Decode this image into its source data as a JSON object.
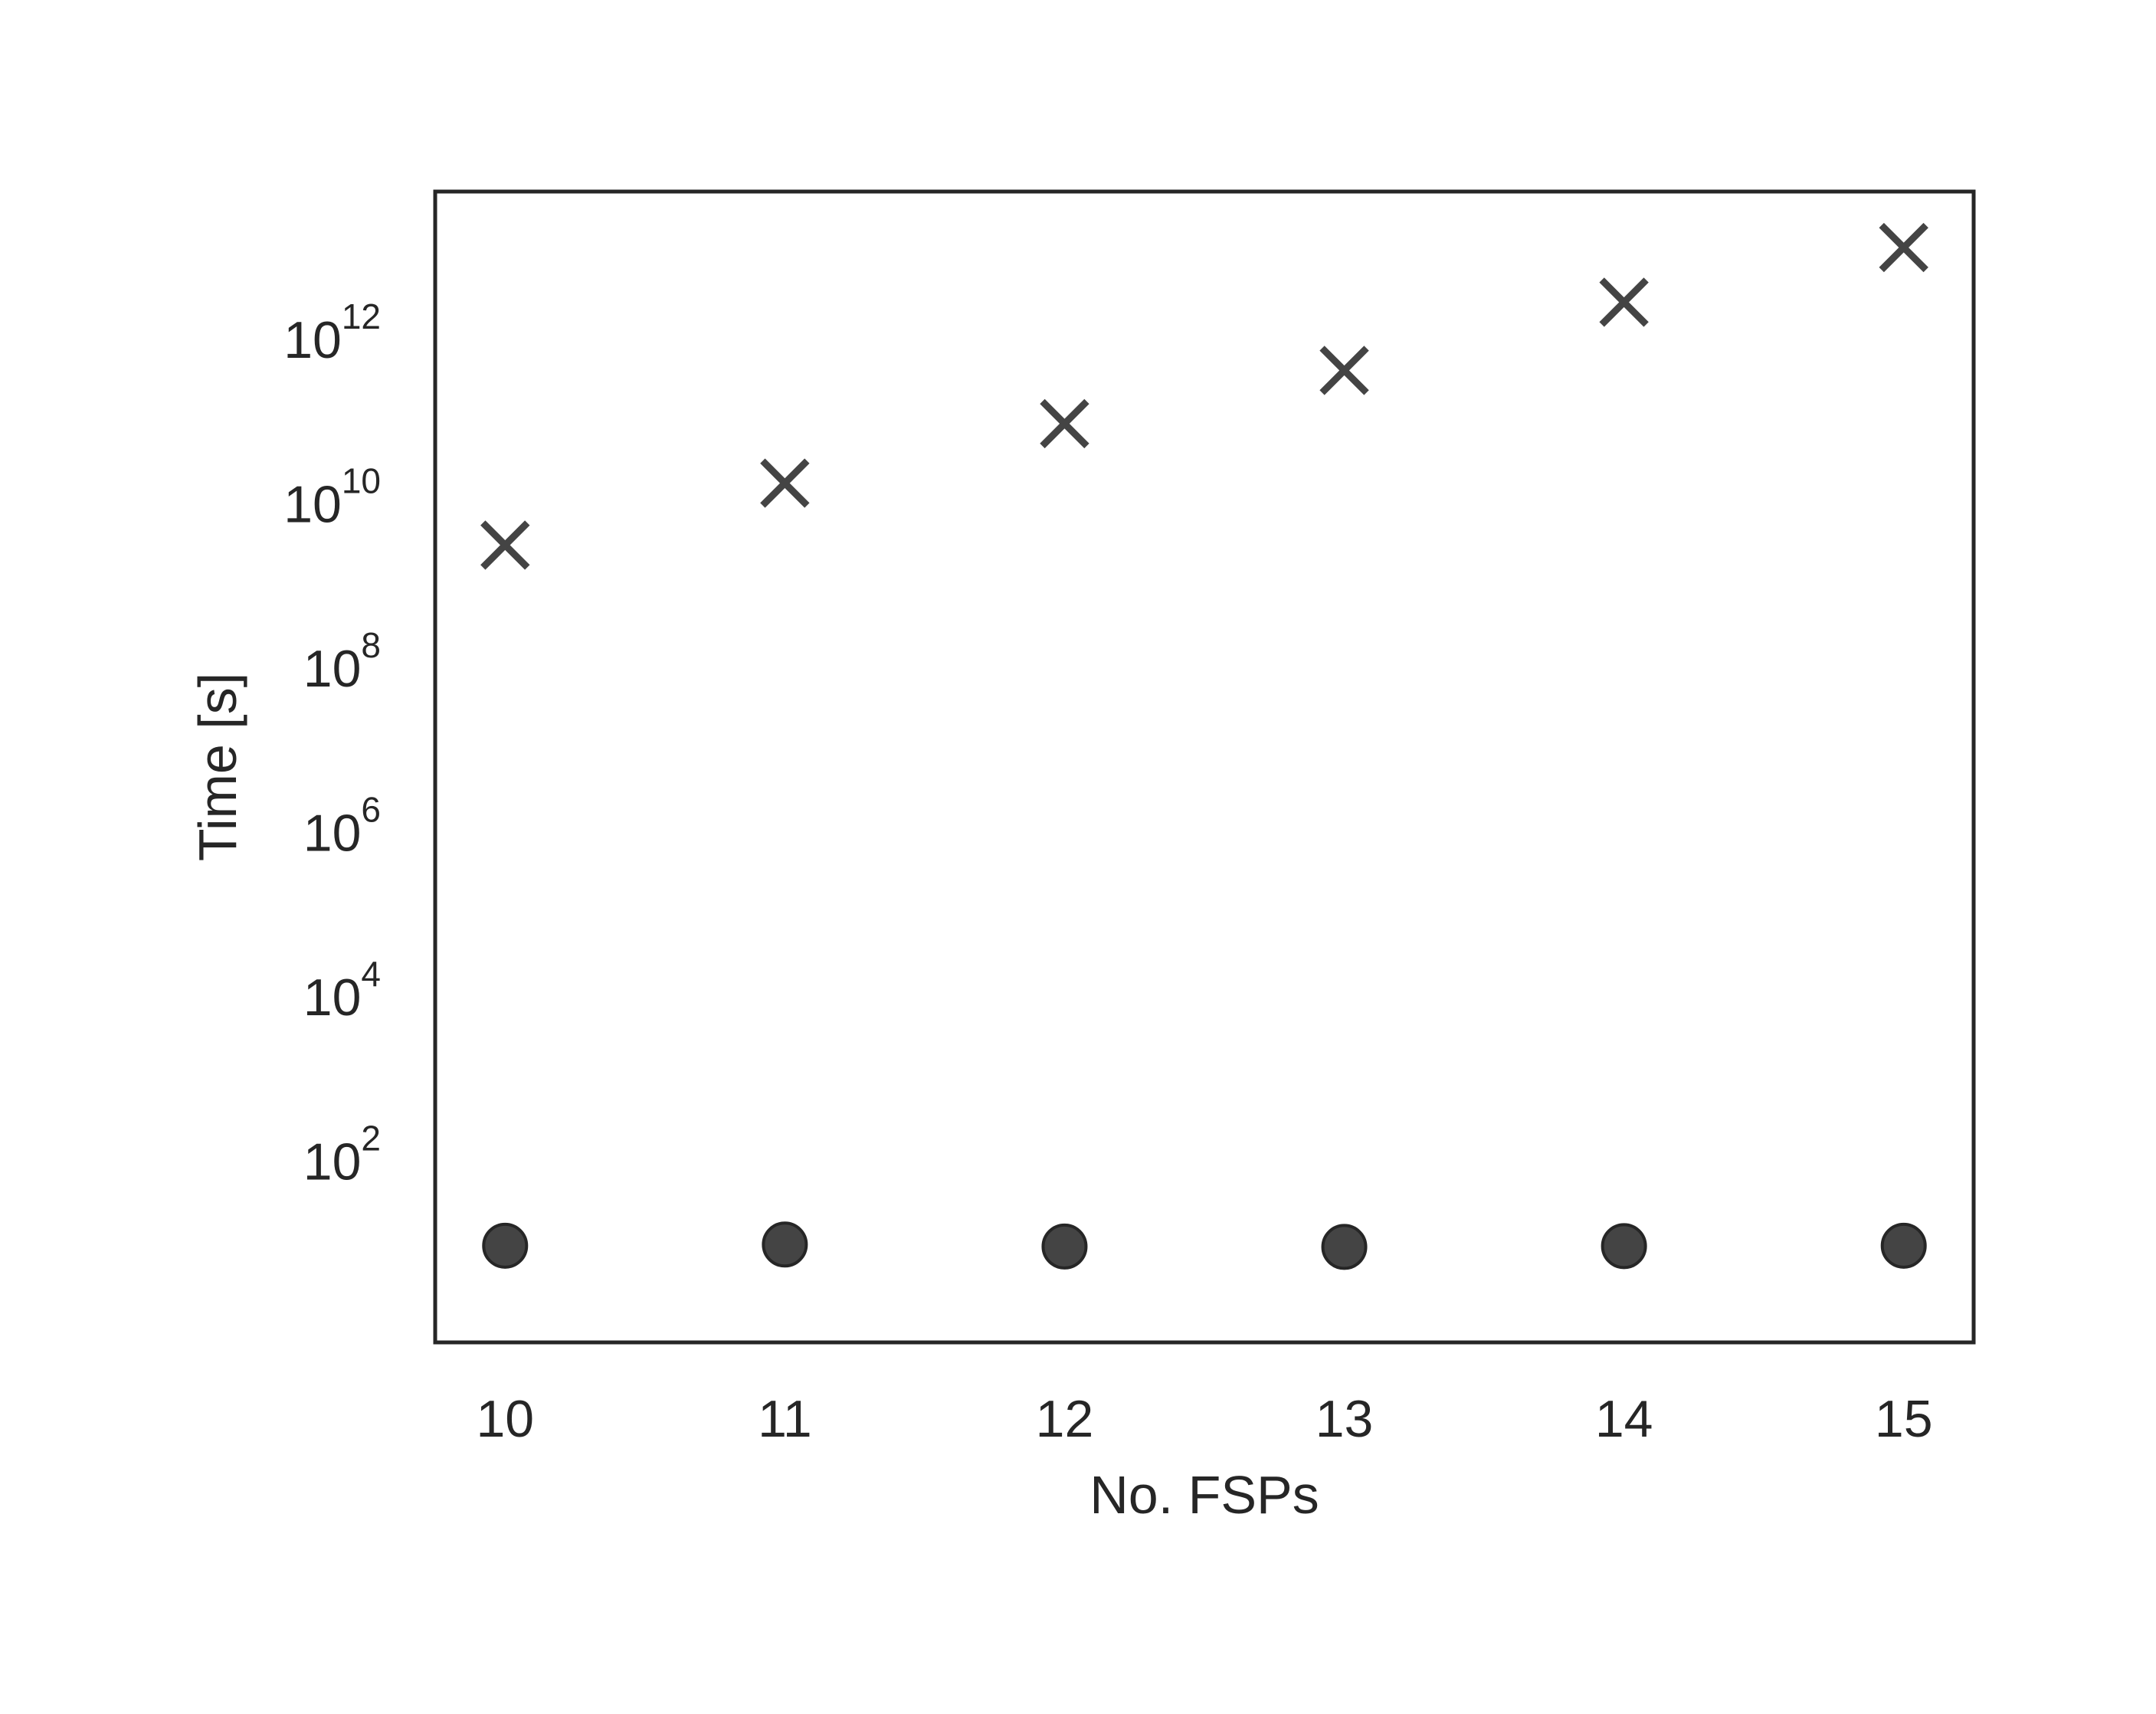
{
  "chart_data": {
    "type": "scatter",
    "title": "",
    "xlabel": "No. FSPs",
    "ylabel": "Time [s]",
    "x_ticks": [
      "10",
      "11",
      "12",
      "13",
      "14",
      "15"
    ],
    "y_scale": "log",
    "y_ticks": [
      {
        "value": 100,
        "base": "10",
        "exponent": "2"
      },
      {
        "value": 10000,
        "base": "10",
        "exponent": "4"
      },
      {
        "value": 1000000,
        "base": "10",
        "exponent": "6"
      },
      {
        "value": 100000000,
        "base": "10",
        "exponent": "8"
      },
      {
        "value": 10000000000,
        "base": "10",
        "exponent": "10"
      },
      {
        "value": 1000000000000,
        "base": "10",
        "exponent": "12"
      }
    ],
    "xlim": [
      9.75,
      15.25
    ],
    "ylim": [
      0.6,
      60000000000000
    ],
    "grid": false,
    "series": [
      {
        "marker": "x",
        "color": "#444444",
        "x": [
          10,
          11,
          12,
          13,
          14,
          15
        ],
        "y": [
          3000000000,
          17000000000,
          90000000000,
          400000000000,
          2700000000000,
          12500000000000
        ]
      },
      {
        "marker": "o",
        "color": "#444444",
        "x": [
          10,
          11,
          12,
          13,
          14,
          15
        ],
        "y": [
          9,
          9.3,
          8.8,
          8.7,
          8.9,
          9
        ]
      }
    ]
  }
}
